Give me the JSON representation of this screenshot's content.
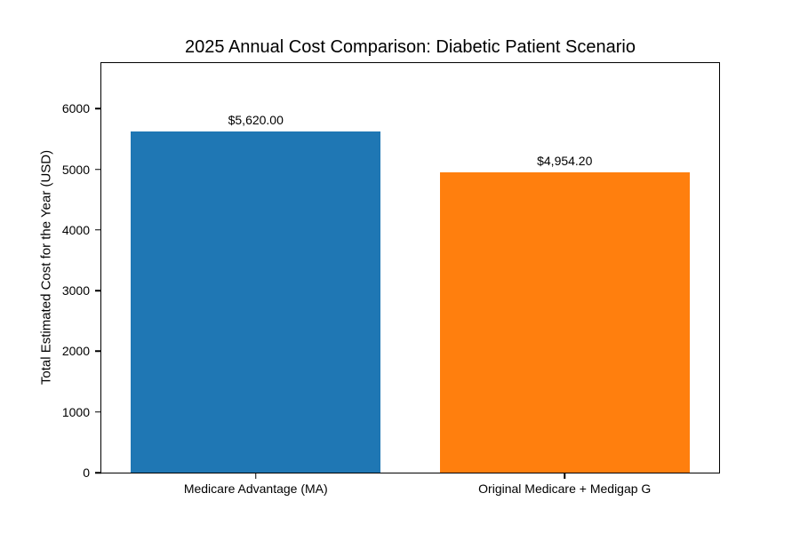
{
  "chart_data": {
    "type": "bar",
    "title": "2025 Annual Cost Comparison: Diabetic Patient Scenario",
    "xlabel": "",
    "ylabel": "Total Estimated Cost for the Year (USD)",
    "categories": [
      "Medicare Advantage (MA)",
      "Original Medicare + Medigap G"
    ],
    "values": [
      5620.0,
      4954.2
    ],
    "bar_labels": [
      "$5,620.00",
      "$4,954.20"
    ],
    "bar_colors": [
      "#1f77b4",
      "#ff7f0e"
    ],
    "ylim": [
      0,
      6750
    ],
    "yticks": [
      0,
      1000,
      2000,
      3000,
      4000,
      5000,
      6000
    ],
    "ytick_labels": [
      "0",
      "1000",
      "2000",
      "3000",
      "4000",
      "5000",
      "6000"
    ],
    "bar_width_fraction": 0.81,
    "grid": false,
    "legend": null,
    "text_color": "#000000",
    "background_color": "#ffffff"
  }
}
